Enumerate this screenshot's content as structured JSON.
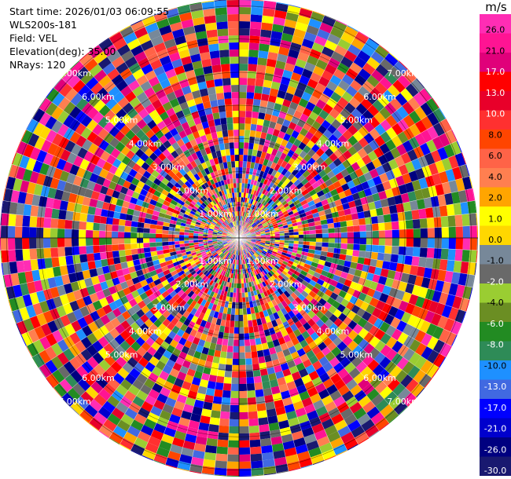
{
  "info": {
    "start_time": "Start time: 2026/01/03 06:09:55",
    "instrument": "WLS200s-181",
    "field": "Field: VEL",
    "elevation": "Elevation(deg): 35.00",
    "nrays": "NRays: 120"
  },
  "chart_data": {
    "type": "heatmap",
    "projection": "polar-ppi",
    "field": "VEL",
    "nrays": 120,
    "ring_labels": [
      "1.00km",
      "2.00km",
      "3.00km",
      "4.00km",
      "5.00km",
      "6.00km",
      "7.00km"
    ],
    "max_range_km": 7.2,
    "colorbar": {
      "unit": "m/s",
      "tick_labels": [
        "26.0",
        "21.0",
        "17.0",
        "13.0",
        "10.0",
        "8.0",
        "6.0",
        "4.0",
        "2.0",
        "1.0",
        "0.0",
        "-1.0",
        "-2.0",
        "-4.0",
        "-6.0",
        "-8.0",
        "-10.0",
        "-13.0",
        "-17.0",
        "-21.0",
        "-26.0",
        "-30.0"
      ],
      "colors": [
        "#ff2db4",
        "#ff1493",
        "#e0007a",
        "#ff0000",
        "#e8002a",
        "#ff3030",
        "#ff4500",
        "#ff6347",
        "#ff7f50",
        "#ffa500",
        "#ffff00",
        "#ffd700",
        "#778899",
        "#696969",
        "#9acd32",
        "#6b8e23",
        "#228b22",
        "#2e8b57",
        "#1e90ff",
        "#4169e1",
        "#0000ff",
        "#0000cd",
        "#000080",
        "#191970"
      ]
    }
  }
}
